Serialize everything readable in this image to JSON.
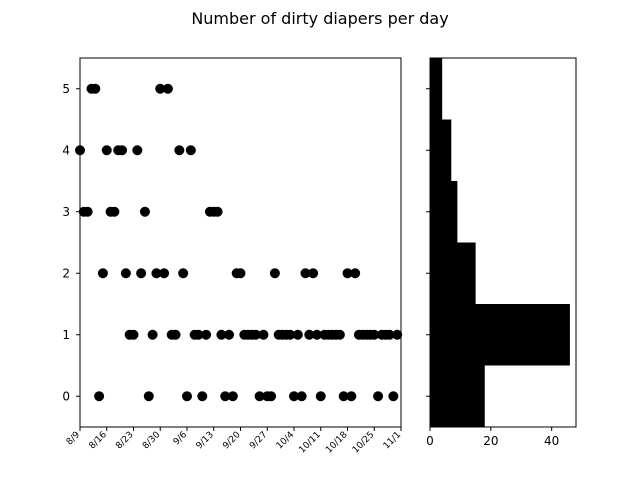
{
  "chart_data": [
    {
      "type": "scatter",
      "title": "Number of dirty diapers per day",
      "xlabel": "",
      "ylabel": "",
      "x_tick_labels": [
        "8/9",
        "8/16",
        "8/23",
        "8/30",
        "9/6",
        "9/13",
        "9/20",
        "9/27",
        "10/4",
        "10/11",
        "10/18",
        "10/25",
        "11/1"
      ],
      "y_tick_labels": [
        "0",
        "1",
        "2",
        "3",
        "4",
        "5"
      ],
      "xlim_days": [
        0,
        84
      ],
      "ylim": [
        -0.5,
        5.5
      ],
      "marker_color": "#000000",
      "grid": false,
      "points": [
        {
          "day": 0,
          "count": 4
        },
        {
          "day": 1,
          "count": 3
        },
        {
          "day": 2,
          "count": 3
        },
        {
          "day": 3,
          "count": 5
        },
        {
          "day": 4,
          "count": 5
        },
        {
          "day": 5,
          "count": 0
        },
        {
          "day": 6,
          "count": 2
        },
        {
          "day": 7,
          "count": 4
        },
        {
          "day": 8,
          "count": 3
        },
        {
          "day": 9,
          "count": 3
        },
        {
          "day": 10,
          "count": 4
        },
        {
          "day": 11,
          "count": 4
        },
        {
          "day": 12,
          "count": 2
        },
        {
          "day": 13,
          "count": 1
        },
        {
          "day": 14,
          "count": 1
        },
        {
          "day": 15,
          "count": 4
        },
        {
          "day": 16,
          "count": 2
        },
        {
          "day": 17,
          "count": 3
        },
        {
          "day": 18,
          "count": 0
        },
        {
          "day": 19,
          "count": 1
        },
        {
          "day": 20,
          "count": 2
        },
        {
          "day": 21,
          "count": 5
        },
        {
          "day": 22,
          "count": 2
        },
        {
          "day": 23,
          "count": 5
        },
        {
          "day": 24,
          "count": 1
        },
        {
          "day": 25,
          "count": 1
        },
        {
          "day": 26,
          "count": 4
        },
        {
          "day": 27,
          "count": 2
        },
        {
          "day": 28,
          "count": 0
        },
        {
          "day": 29,
          "count": 4
        },
        {
          "day": 30,
          "count": 1
        },
        {
          "day": 31,
          "count": 1
        },
        {
          "day": 32,
          "count": 0
        },
        {
          "day": 33,
          "count": 1
        },
        {
          "day": 34,
          "count": 3
        },
        {
          "day": 35,
          "count": 3
        },
        {
          "day": 36,
          "count": 3
        },
        {
          "day": 37,
          "count": 1
        },
        {
          "day": 38,
          "count": 0
        },
        {
          "day": 39,
          "count": 1
        },
        {
          "day": 40,
          "count": 0
        },
        {
          "day": 41,
          "count": 2
        },
        {
          "day": 42,
          "count": 2
        },
        {
          "day": 43,
          "count": 1
        },
        {
          "day": 44,
          "count": 1
        },
        {
          "day": 45,
          "count": 1
        },
        {
          "day": 46,
          "count": 1
        },
        {
          "day": 47,
          "count": 0
        },
        {
          "day": 48,
          "count": 1
        },
        {
          "day": 49,
          "count": 0
        },
        {
          "day": 50,
          "count": 0
        },
        {
          "day": 51,
          "count": 2
        },
        {
          "day": 52,
          "count": 1
        },
        {
          "day": 53,
          "count": 1
        },
        {
          "day": 54,
          "count": 1
        },
        {
          "day": 55,
          "count": 1
        },
        {
          "day": 56,
          "count": 0
        },
        {
          "day": 57,
          "count": 1
        },
        {
          "day": 58,
          "count": 0
        },
        {
          "day": 59,
          "count": 2
        },
        {
          "day": 60,
          "count": 1
        },
        {
          "day": 61,
          "count": 2
        },
        {
          "day": 62,
          "count": 1
        },
        {
          "day": 63,
          "count": 0
        },
        {
          "day": 64,
          "count": 1
        },
        {
          "day": 65,
          "count": 1
        },
        {
          "day": 66,
          "count": 1
        },
        {
          "day": 67,
          "count": 1
        },
        {
          "day": 68,
          "count": 1
        },
        {
          "day": 69,
          "count": 0
        },
        {
          "day": 70,
          "count": 2
        },
        {
          "day": 71,
          "count": 0
        },
        {
          "day": 72,
          "count": 2
        },
        {
          "day": 73,
          "count": 1
        },
        {
          "day": 74,
          "count": 1
        },
        {
          "day": 75,
          "count": 1
        },
        {
          "day": 76,
          "count": 1
        },
        {
          "day": 77,
          "count": 1
        },
        {
          "day": 78,
          "count": 0
        },
        {
          "day": 79,
          "count": 1
        },
        {
          "day": 80,
          "count": 1
        },
        {
          "day": 81,
          "count": 1
        },
        {
          "day": 82,
          "count": 0
        },
        {
          "day": 83,
          "count": 1
        }
      ]
    },
    {
      "type": "bar",
      "orientation": "horizontal",
      "categories": [
        "0",
        "1",
        "2",
        "3",
        "4",
        "5"
      ],
      "values": [
        18,
        46,
        15,
        9,
        7,
        4
      ],
      "x_tick_labels": [
        "0",
        "20",
        "40"
      ],
      "xlim": [
        0,
        48
      ],
      "ylim": [
        -0.5,
        5.5
      ],
      "bar_color": "#000000"
    }
  ]
}
